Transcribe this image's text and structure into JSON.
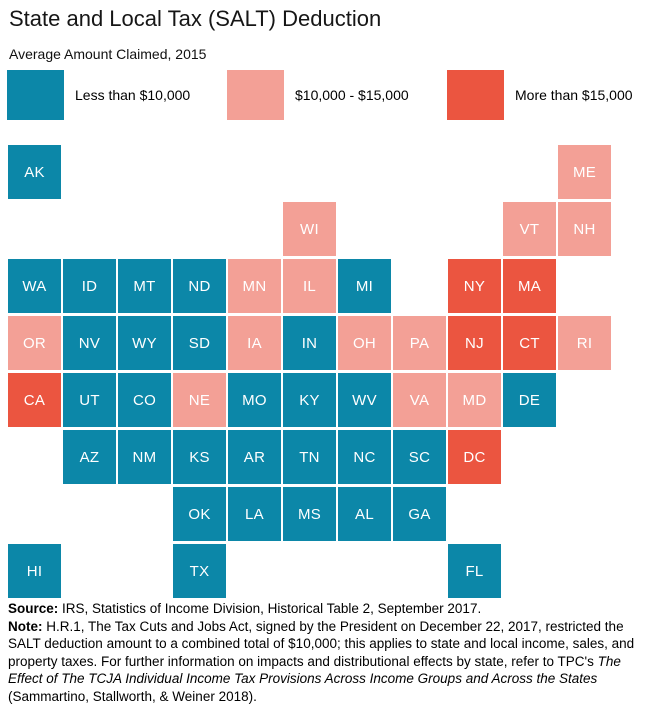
{
  "title": "State and Local Tax (SALT) Deduction",
  "subtitle": "Average Amount Claimed, 2015",
  "colors": {
    "low": "#0c87a8",
    "mid": "#f3a096",
    "high": "#eb5540"
  },
  "legend": [
    {
      "key": "low",
      "label": "Less than $10,000",
      "color": "#0c87a8"
    },
    {
      "key": "mid",
      "label": "$10,000 - $15,000",
      "color": "#f3a096"
    },
    {
      "key": "high",
      "label": "More than $15,000",
      "color": "#eb5540"
    }
  ],
  "chart_data": {
    "type": "heatmap",
    "subtype": "state-tile-grid-map",
    "title": "State and Local Tax (SALT) Deduction",
    "subtitle": "Average Amount Claimed, 2015",
    "legend_position": "top",
    "categories": [
      "Less than $10,000",
      "$10,000 - $15,000",
      "More than $15,000"
    ],
    "category_keys": [
      "low",
      "mid",
      "high"
    ],
    "grid": {
      "columns": 11,
      "rows": 8
    },
    "states": [
      {
        "abbr": "AK",
        "row": 0,
        "col": 0,
        "key": "low",
        "value": "Less than $10,000"
      },
      {
        "abbr": "ME",
        "row": 0,
        "col": 10,
        "key": "mid",
        "value": "$10,000 - $15,000"
      },
      {
        "abbr": "WI",
        "row": 1,
        "col": 5,
        "key": "mid",
        "value": "$10,000 - $15,000"
      },
      {
        "abbr": "VT",
        "row": 1,
        "col": 9,
        "key": "mid",
        "value": "$10,000 - $15,000"
      },
      {
        "abbr": "NH",
        "row": 1,
        "col": 10,
        "key": "mid",
        "value": "$10,000 - $15,000"
      },
      {
        "abbr": "WA",
        "row": 2,
        "col": 0,
        "key": "low",
        "value": "Less than $10,000"
      },
      {
        "abbr": "ID",
        "row": 2,
        "col": 1,
        "key": "low",
        "value": "Less than $10,000"
      },
      {
        "abbr": "MT",
        "row": 2,
        "col": 2,
        "key": "low",
        "value": "Less than $10,000"
      },
      {
        "abbr": "ND",
        "row": 2,
        "col": 3,
        "key": "low",
        "value": "Less than $10,000"
      },
      {
        "abbr": "MN",
        "row": 2,
        "col": 4,
        "key": "mid",
        "value": "$10,000 - $15,000"
      },
      {
        "abbr": "IL",
        "row": 2,
        "col": 5,
        "key": "mid",
        "value": "$10,000 - $15,000"
      },
      {
        "abbr": "MI",
        "row": 2,
        "col": 6,
        "key": "low",
        "value": "Less than $10,000"
      },
      {
        "abbr": "NY",
        "row": 2,
        "col": 8,
        "key": "high",
        "value": "More than $15,000"
      },
      {
        "abbr": "MA",
        "row": 2,
        "col": 9,
        "key": "high",
        "value": "More than $15,000"
      },
      {
        "abbr": "OR",
        "row": 3,
        "col": 0,
        "key": "mid",
        "value": "$10,000 - $15,000"
      },
      {
        "abbr": "NV",
        "row": 3,
        "col": 1,
        "key": "low",
        "value": "Less than $10,000"
      },
      {
        "abbr": "WY",
        "row": 3,
        "col": 2,
        "key": "low",
        "value": "Less than $10,000"
      },
      {
        "abbr": "SD",
        "row": 3,
        "col": 3,
        "key": "low",
        "value": "Less than $10,000"
      },
      {
        "abbr": "IA",
        "row": 3,
        "col": 4,
        "key": "mid",
        "value": "$10,000 - $15,000"
      },
      {
        "abbr": "IN",
        "row": 3,
        "col": 5,
        "key": "low",
        "value": "Less than $10,000"
      },
      {
        "abbr": "OH",
        "row": 3,
        "col": 6,
        "key": "mid",
        "value": "$10,000 - $15,000"
      },
      {
        "abbr": "PA",
        "row": 3,
        "col": 7,
        "key": "mid",
        "value": "$10,000 - $15,000"
      },
      {
        "abbr": "NJ",
        "row": 3,
        "col": 8,
        "key": "high",
        "value": "More than $15,000"
      },
      {
        "abbr": "CT",
        "row": 3,
        "col": 9,
        "key": "high",
        "value": "More than $15,000"
      },
      {
        "abbr": "RI",
        "row": 3,
        "col": 10,
        "key": "mid",
        "value": "$10,000 - $15,000"
      },
      {
        "abbr": "CA",
        "row": 4,
        "col": 0,
        "key": "high",
        "value": "More than $15,000"
      },
      {
        "abbr": "UT",
        "row": 4,
        "col": 1,
        "key": "low",
        "value": "Less than $10,000"
      },
      {
        "abbr": "CO",
        "row": 4,
        "col": 2,
        "key": "low",
        "value": "Less than $10,000"
      },
      {
        "abbr": "NE",
        "row": 4,
        "col": 3,
        "key": "mid",
        "value": "$10,000 - $15,000"
      },
      {
        "abbr": "MO",
        "row": 4,
        "col": 4,
        "key": "low",
        "value": "Less than $10,000"
      },
      {
        "abbr": "KY",
        "row": 4,
        "col": 5,
        "key": "low",
        "value": "Less than $10,000"
      },
      {
        "abbr": "WV",
        "row": 4,
        "col": 6,
        "key": "low",
        "value": "Less than $10,000"
      },
      {
        "abbr": "VA",
        "row": 4,
        "col": 7,
        "key": "mid",
        "value": "$10,000 - $15,000"
      },
      {
        "abbr": "MD",
        "row": 4,
        "col": 8,
        "key": "mid",
        "value": "$10,000 - $15,000"
      },
      {
        "abbr": "DE",
        "row": 4,
        "col": 9,
        "key": "low",
        "value": "Less than $10,000"
      },
      {
        "abbr": "AZ",
        "row": 5,
        "col": 1,
        "key": "low",
        "value": "Less than $10,000"
      },
      {
        "abbr": "NM",
        "row": 5,
        "col": 2,
        "key": "low",
        "value": "Less than $10,000"
      },
      {
        "abbr": "KS",
        "row": 5,
        "col": 3,
        "key": "low",
        "value": "Less than $10,000"
      },
      {
        "abbr": "AR",
        "row": 5,
        "col": 4,
        "key": "low",
        "value": "Less than $10,000"
      },
      {
        "abbr": "TN",
        "row": 5,
        "col": 5,
        "key": "low",
        "value": "Less than $10,000"
      },
      {
        "abbr": "NC",
        "row": 5,
        "col": 6,
        "key": "low",
        "value": "Less than $10,000"
      },
      {
        "abbr": "SC",
        "row": 5,
        "col": 7,
        "key": "low",
        "value": "Less than $10,000"
      },
      {
        "abbr": "DC",
        "row": 5,
        "col": 8,
        "key": "high",
        "value": "More than $15,000"
      },
      {
        "abbr": "OK",
        "row": 6,
        "col": 3,
        "key": "low",
        "value": "Less than $10,000"
      },
      {
        "abbr": "LA",
        "row": 6,
        "col": 4,
        "key": "low",
        "value": "Less than $10,000"
      },
      {
        "abbr": "MS",
        "row": 6,
        "col": 5,
        "key": "low",
        "value": "Less than $10,000"
      },
      {
        "abbr": "AL",
        "row": 6,
        "col": 6,
        "key": "low",
        "value": "Less than $10,000"
      },
      {
        "abbr": "GA",
        "row": 6,
        "col": 7,
        "key": "low",
        "value": "Less than $10,000"
      },
      {
        "abbr": "HI",
        "row": 7,
        "col": 0,
        "key": "low",
        "value": "Less than $10,000"
      },
      {
        "abbr": "TX",
        "row": 7,
        "col": 3,
        "key": "low",
        "value": "Less than $10,000"
      },
      {
        "abbr": "FL",
        "row": 7,
        "col": 8,
        "key": "low",
        "value": "Less than $10,000"
      }
    ]
  },
  "footer": {
    "source_label": "Source:",
    "source_text": " IRS, Statistics of Income Division, Historical Table 2, September 2017.",
    "note_label": "Note:",
    "note_text_1": " H.R.1, The Tax Cuts and Jobs Act, signed by the President on December 22, 2017, restricted the SALT deduction amount to a combined total of $10,000; this applies to state and local income, sales, and property taxes. For further information on impacts and distributional effects by state, refer to TPC's ",
    "note_italic": "The Effect of The TCJA Individual Income Tax Provisions Across Income Groups and Across the States",
    "note_text_2": " (Sammartino, Stallworth, & Weiner 2018)."
  }
}
